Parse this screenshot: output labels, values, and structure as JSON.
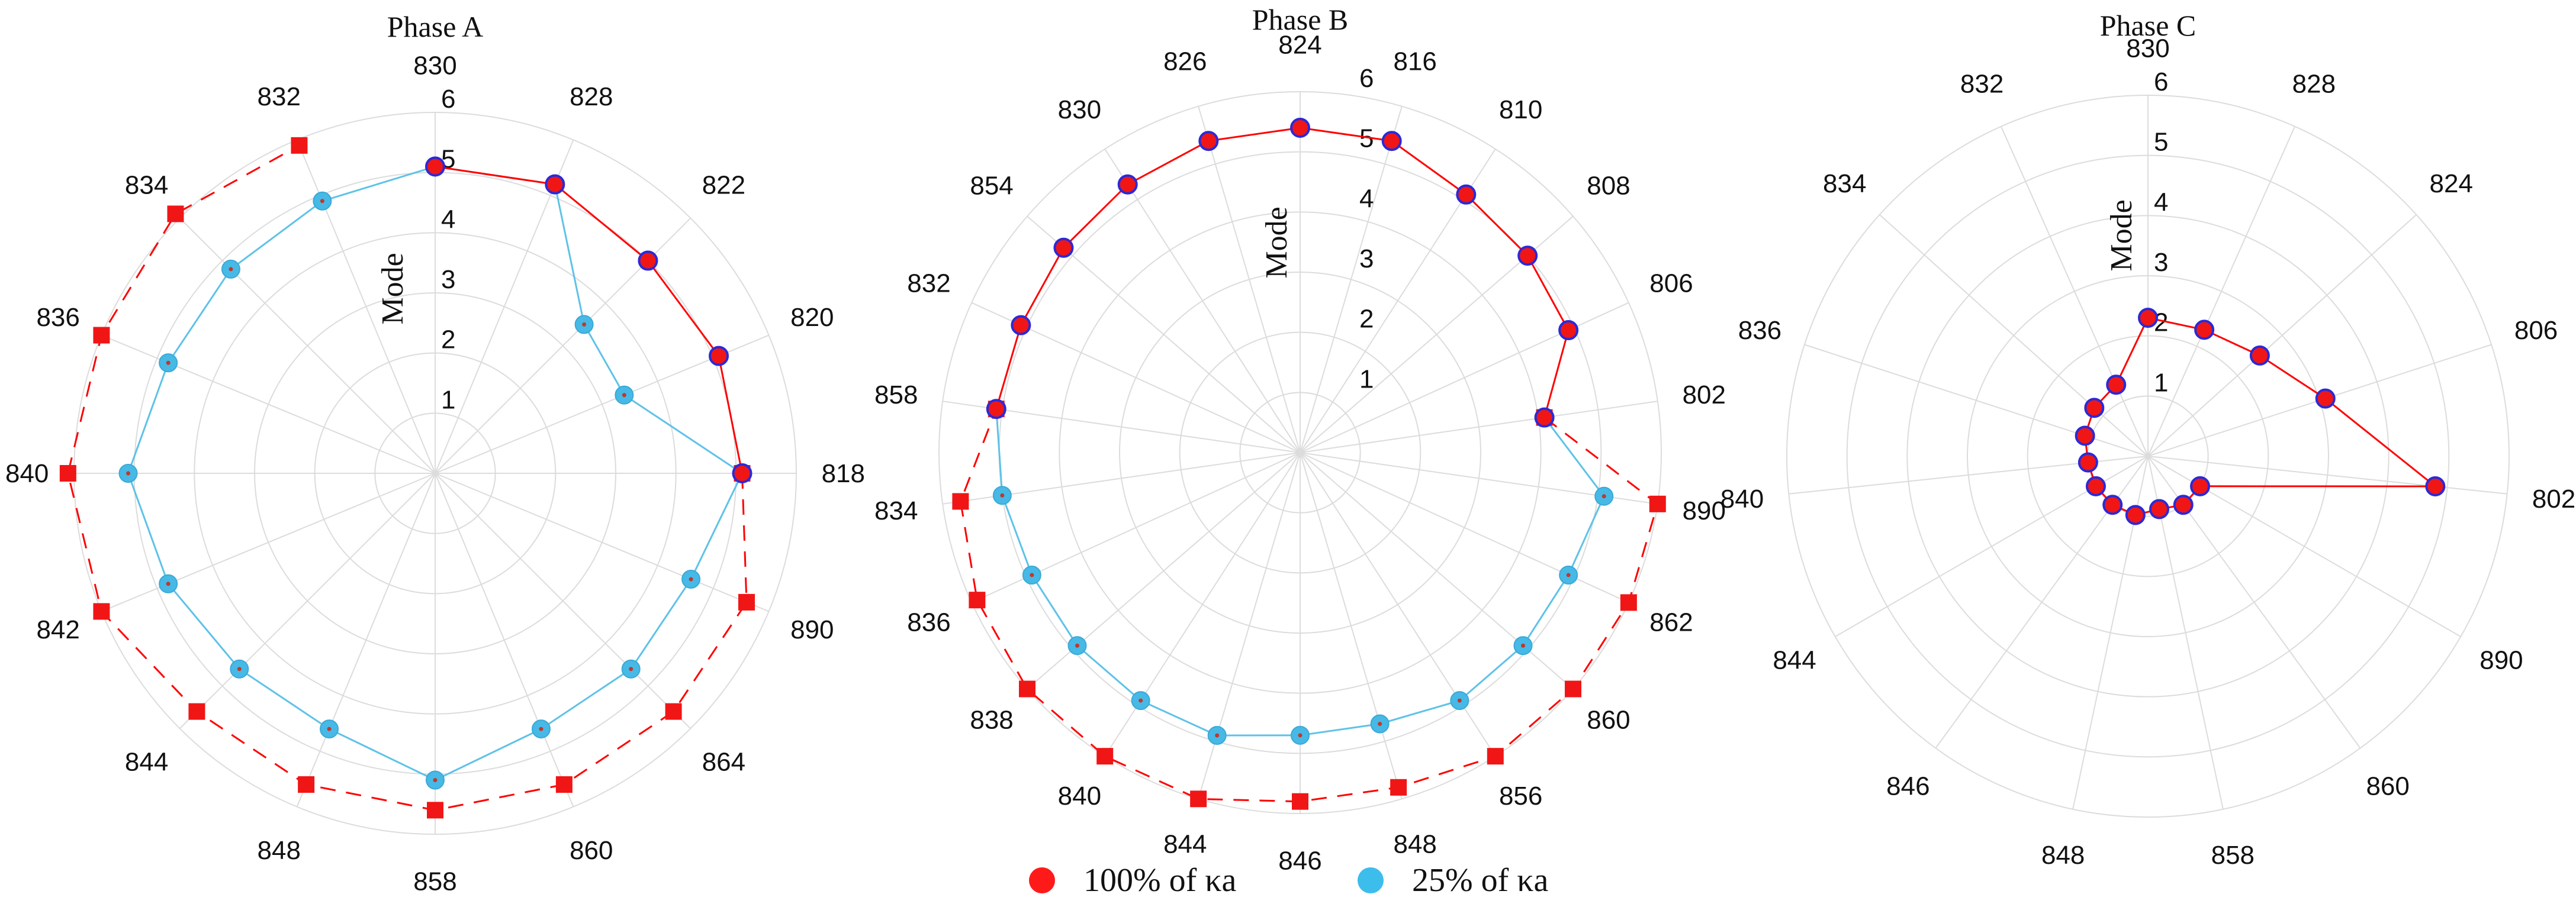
{
  "chart_data": [
    {
      "type": "polar-line",
      "title": "Phase A",
      "r_axis_label": "Mode",
      "r_ticks": [
        1,
        2,
        3,
        4,
        5,
        6
      ],
      "r_max": 6,
      "categories": [
        "830",
        "828",
        "822",
        "820",
        "818",
        "890",
        "864",
        "860",
        "858",
        "848",
        "844",
        "842",
        "840",
        "836",
        "834",
        "832"
      ],
      "series": [
        {
          "name": "100% of κa",
          "style": "solid-red",
          "values": [
            5.1,
            5.2,
            5.0,
            5.1,
            5.1,
            null,
            null,
            null,
            null,
            null,
            null,
            null,
            null,
            null,
            null,
            null
          ]
        },
        {
          "name": "100% of κa",
          "style": "dashed-red-square",
          "values": [
            null,
            null,
            null,
            null,
            5.1,
            5.6,
            5.6,
            5.6,
            5.6,
            5.6,
            5.6,
            6.0,
            6.1,
            6.0,
            6.1,
            5.9
          ]
        },
        {
          "name": "25% of κa",
          "style": "solid-cyan",
          "values": [
            5.1,
            5.2,
            3.5,
            3.4,
            5.1,
            4.6,
            4.6,
            4.6,
            5.1,
            4.6,
            4.6,
            4.8,
            5.1,
            4.8,
            4.8,
            4.9
          ]
        }
      ]
    },
    {
      "type": "polar-line",
      "title": "Phase B",
      "r_axis_label": "Mode",
      "r_ticks": [
        1,
        2,
        3,
        4,
        5,
        6
      ],
      "r_max": 6,
      "categories": [
        "824",
        "816",
        "810",
        "808",
        "806",
        "802",
        "890",
        "862",
        "860",
        "856",
        "848",
        "846",
        "844",
        "840",
        "838",
        "836",
        "834",
        "858",
        "832",
        "854",
        "830",
        "826"
      ],
      "series": [
        {
          "name": "100% of κa",
          "style": "solid-red",
          "values": [
            5.4,
            5.4,
            5.1,
            5.0,
            4.9,
            4.1,
            null,
            null,
            null,
            null,
            null,
            null,
            null,
            null,
            null,
            null,
            null,
            5.1,
            5.1,
            5.2,
            5.3,
            5.4
          ]
        },
        {
          "name": "100% of κa",
          "style": "dashed-red-square",
          "values": [
            null,
            null,
            null,
            null,
            null,
            4.1,
            6.0,
            6.0,
            6.0,
            6.0,
            5.8,
            5.8,
            6.0,
            6.0,
            6.0,
            5.9,
            5.7,
            5.1,
            null,
            null,
            null,
            null
          ]
        },
        {
          "name": "25% of κa",
          "style": "solid-cyan",
          "values": [
            null,
            null,
            null,
            null,
            null,
            4.1,
            5.1,
            4.9,
            4.9,
            4.9,
            4.7,
            4.7,
            4.9,
            4.9,
            4.9,
            4.9,
            5.0,
            5.1,
            null,
            null,
            null,
            null
          ]
        }
      ]
    },
    {
      "type": "polar-line",
      "title": "Phase C",
      "r_axis_label": "Mode",
      "r_ticks": [
        1,
        2,
        3,
        4,
        5,
        6
      ],
      "r_max": 6,
      "categories": [
        "830",
        "828",
        "824",
        "806",
        "802",
        "890",
        "860",
        "858",
        "848",
        "846",
        "844",
        "840",
        "836",
        "834",
        "832"
      ],
      "series": [
        {
          "name": "100% of κa",
          "style": "solid-red-blue-edge",
          "values": [
            2.3,
            2.3,
            2.5,
            3.1,
            4.8,
            1.0,
            1.0,
            0.9,
            1.0,
            1.0,
            1.0,
            1.0,
            1.1,
            1.2,
            1.3
          ]
        }
      ]
    }
  ],
  "legend": [
    {
      "label": "100% of κa",
      "color": "#ff1a1a"
    },
    {
      "label": "25% of κa",
      "color": "#3cbdec"
    }
  ],
  "colors": {
    "red": "#ff0000",
    "red_marker": "#f01616",
    "cyan": "#47b9e6",
    "cyan_line": "#5ec2e8",
    "edge_blue": "#2a2ad8"
  }
}
